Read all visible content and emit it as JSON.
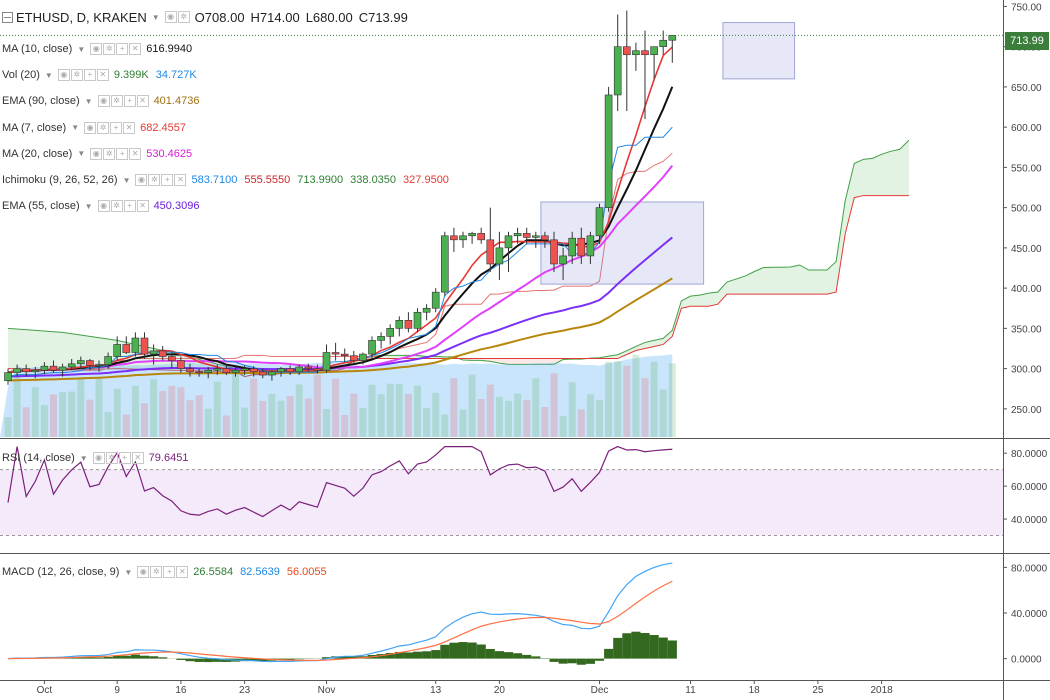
{
  "header": {
    "symbol": "ETHUSD, D, KRAKEN",
    "open": "O708.00",
    "high": "H714.00",
    "low": "L680.00",
    "close": "C713.99"
  },
  "last_price_label": "713.99",
  "indicators": [
    {
      "name": "MA (10, close)",
      "values": [
        {
          "text": "616.9940",
          "color": "#111111"
        }
      ]
    },
    {
      "name": "Vol (20)",
      "values": [
        {
          "text": "9.399K",
          "color": "#2e7d32"
        },
        {
          "text": "34.727K",
          "color": "#1e88e5"
        }
      ]
    },
    {
      "name": "EMA (90, close)",
      "values": [
        {
          "text": "401.4736",
          "color": "#a0700f"
        }
      ]
    },
    {
      "name": "MA (7, close)",
      "values": [
        {
          "text": "682.4557",
          "color": "#e53935"
        }
      ]
    },
    {
      "name": "MA (20, close)",
      "values": [
        {
          "text": "530.4625",
          "color": "#d81bd8"
        }
      ]
    },
    {
      "name": "Ichimoku (9, 26, 52, 26)",
      "values": [
        {
          "text": "583.7100",
          "color": "#1e88e5"
        },
        {
          "text": "555.5550",
          "color": "#c62828"
        },
        {
          "text": "713.9900",
          "color": "#2e7d32"
        },
        {
          "text": "338.0350",
          "color": "#2e7d32"
        },
        {
          "text": "327.9500",
          "color": "#e53935"
        }
      ]
    },
    {
      "name": "EMA (55, close)",
      "values": [
        {
          "text": "450.3096",
          "color": "#6a1be0"
        }
      ]
    }
  ],
  "rsi_legend": {
    "name": "RSI (14, close)",
    "values": [
      {
        "text": "79.6451",
        "color": "#7b1f7b"
      }
    ]
  },
  "macd_legend": {
    "name": "MACD (12, 26, close, 9)",
    "values": [
      {
        "text": "26.5584",
        "color": "#2e7d32"
      },
      {
        "text": "82.5639",
        "color": "#1e88e5"
      },
      {
        "text": "56.0055",
        "color": "#e64a19"
      }
    ]
  },
  "chart_data": {
    "type": "candlestick",
    "price_axis": {
      "ticks": [
        "750.00",
        "700.00",
        "650.00",
        "600.00",
        "550.00",
        "500.00",
        "450.00",
        "400.00",
        "350.00",
        "300.00",
        "250.00"
      ],
      "range": [
        215,
        758
      ]
    },
    "rsi_axis": {
      "ticks": [
        "80.0000",
        "60.0000",
        "40.0000"
      ],
      "range": [
        20,
        88
      ],
      "upper": 70,
      "lower": 30
    },
    "macd_axis": {
      "ticks": [
        "80.0000",
        "40.0000",
        "0.0000"
      ],
      "range": [
        -17,
        90
      ]
    },
    "time_axis": [
      {
        "label": "Oct",
        "day": 4
      },
      {
        "label": "9",
        "day": 12
      },
      {
        "label": "16",
        "day": 19
      },
      {
        "label": "23",
        "day": 26
      },
      {
        "label": "Nov",
        "day": 35
      },
      {
        "label": "13",
        "day": 47
      },
      {
        "label": "20",
        "day": 54
      },
      {
        "label": "Dec",
        "day": 65
      },
      {
        "label": "11",
        "day": 75
      },
      {
        "label": "18",
        "day": 82
      },
      {
        "label": "25",
        "day": 89
      },
      {
        "label": "2018",
        "day": 96
      }
    ],
    "candles": [
      [
        285,
        300,
        280,
        295
      ],
      [
        295,
        305,
        290,
        300
      ],
      [
        300,
        305,
        290,
        296
      ],
      [
        296,
        302,
        288,
        298
      ],
      [
        298,
        308,
        293,
        303
      ],
      [
        303,
        310,
        295,
        298
      ],
      [
        298,
        306,
        290,
        302
      ],
      [
        302,
        312,
        298,
        306
      ],
      [
        306,
        315,
        300,
        310
      ],
      [
        310,
        312,
        298,
        304
      ],
      [
        304,
        310,
        296,
        305
      ],
      [
        305,
        320,
        300,
        315
      ],
      [
        315,
        340,
        310,
        330
      ],
      [
        330,
        340,
        318,
        320
      ],
      [
        320,
        345,
        315,
        338
      ],
      [
        338,
        345,
        312,
        318
      ],
      [
        318,
        330,
        305,
        322
      ],
      [
        322,
        328,
        310,
        315
      ],
      [
        315,
        320,
        300,
        310
      ],
      [
        310,
        315,
        295,
        300
      ],
      [
        300,
        306,
        290,
        296
      ],
      [
        296,
        300,
        290,
        295
      ],
      [
        295,
        302,
        288,
        298
      ],
      [
        298,
        305,
        292,
        300
      ],
      [
        300,
        306,
        292,
        295
      ],
      [
        295,
        302,
        290,
        298
      ],
      [
        298,
        304,
        292,
        300
      ],
      [
        300,
        303,
        290,
        296
      ],
      [
        296,
        300,
        288,
        292
      ],
      [
        292,
        298,
        285,
        296
      ],
      [
        296,
        302,
        290,
        300
      ],
      [
        300,
        304,
        292,
        296
      ],
      [
        296,
        305,
        292,
        302
      ],
      [
        302,
        306,
        296,
        300
      ],
      [
        300,
        305,
        294,
        298
      ],
      [
        298,
        330,
        295,
        320
      ],
      [
        320,
        332,
        310,
        318
      ],
      [
        318,
        325,
        308,
        316
      ],
      [
        316,
        322,
        305,
        310
      ],
      [
        310,
        320,
        305,
        318
      ],
      [
        318,
        340,
        312,
        335
      ],
      [
        335,
        345,
        325,
        340
      ],
      [
        340,
        355,
        330,
        350
      ],
      [
        350,
        365,
        340,
        360
      ],
      [
        360,
        370,
        345,
        350
      ],
      [
        350,
        375,
        345,
        370
      ],
      [
        370,
        380,
        360,
        375
      ],
      [
        375,
        400,
        370,
        395
      ],
      [
        395,
        470,
        390,
        465
      ],
      [
        465,
        475,
        445,
        460
      ],
      [
        460,
        470,
        450,
        465
      ],
      [
        465,
        470,
        455,
        468
      ],
      [
        468,
        475,
        455,
        460
      ],
      [
        460,
        500,
        420,
        430
      ],
      [
        430,
        470,
        410,
        450
      ],
      [
        450,
        470,
        420,
        465
      ],
      [
        465,
        475,
        455,
        468
      ],
      [
        468,
        475,
        455,
        463
      ],
      [
        463,
        470,
        450,
        465
      ],
      [
        465,
        470,
        450,
        460
      ],
      [
        460,
        470,
        420,
        430
      ],
      [
        430,
        450,
        410,
        440
      ],
      [
        440,
        470,
        430,
        462
      ],
      [
        462,
        475,
        430,
        440
      ],
      [
        440,
        470,
        430,
        465
      ],
      [
        465,
        505,
        455,
        500
      ],
      [
        500,
        650,
        495,
        640
      ],
      [
        640,
        740,
        620,
        700
      ],
      [
        700,
        745,
        620,
        690
      ],
      [
        690,
        705,
        670,
        695
      ],
      [
        695,
        720,
        610,
        690
      ],
      [
        690,
        700,
        660,
        700
      ],
      [
        700,
        720,
        690,
        708
      ],
      [
        708,
        714,
        680,
        713.99
      ]
    ],
    "boxes": [
      {
        "from_day": 59,
        "to_day": 76,
        "low": 405,
        "high": 507
      },
      {
        "from_day": 79,
        "to_day": 86,
        "low": 660,
        "high": 730
      }
    ]
  }
}
